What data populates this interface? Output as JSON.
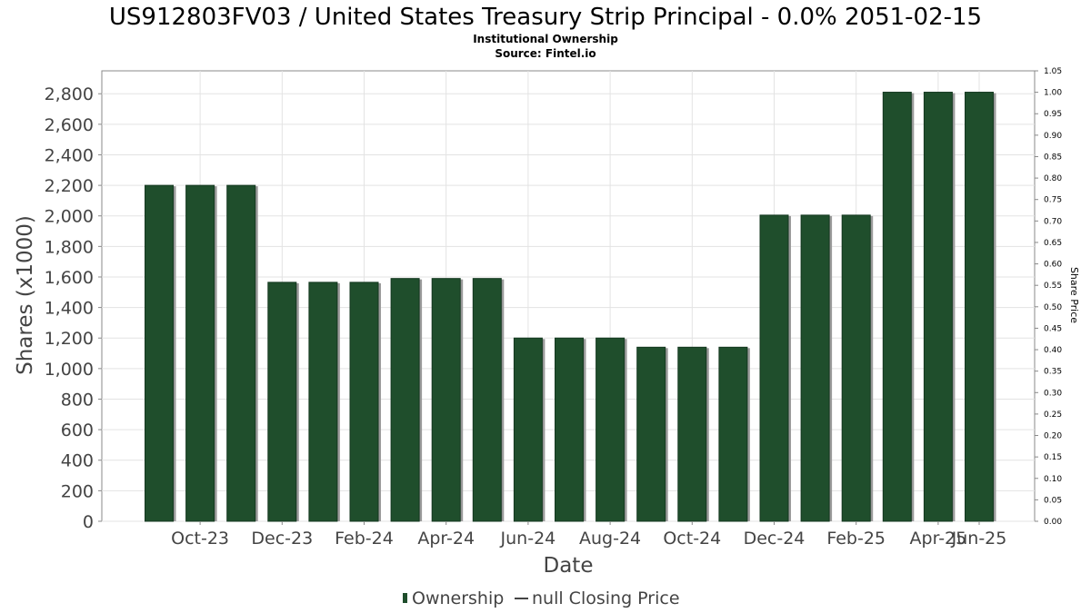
{
  "chart_data": {
    "type": "bar",
    "title": "US912803FV03 / United States Treasury Strip Principal - 0.0% 2051-02-15",
    "subtitle_lines": [
      "Institutional Ownership",
      "Source: Fintel.io"
    ],
    "xlabel": "Date",
    "ylabel": "Shares (x1000)",
    "y2label": "Share Price",
    "ylim": [
      0,
      2950
    ],
    "y2lim": [
      0,
      1.05
    ],
    "yticks": [
      0,
      200,
      400,
      600,
      800,
      1000,
      1200,
      1400,
      1600,
      1800,
      2000,
      2200,
      2400,
      2600,
      2800
    ],
    "ytick_labels": [
      "0",
      "200",
      "400",
      "600",
      "800",
      "1,000",
      "1,200",
      "1,400",
      "1,600",
      "1,800",
      "2,000",
      "2,200",
      "2,400",
      "2,600",
      "2,800"
    ],
    "y2tick_labels": [
      "0.00",
      "0.05",
      "0.10",
      "0.15",
      "0.20",
      "0.25",
      "0.30",
      "0.35",
      "0.40",
      "0.45",
      "0.50",
      "0.55",
      "0.60",
      "0.65",
      "0.70",
      "0.75",
      "0.80",
      "0.85",
      "0.90",
      "0.95",
      "1.00",
      "1.05"
    ],
    "x_tick_labels": [
      "Oct-23",
      "Dec-23",
      "Feb-24",
      "Apr-24",
      "Jun-24",
      "Aug-24",
      "Oct-24",
      "Dec-24",
      "Feb-25",
      "Apr-25",
      "Jun-25"
    ],
    "series": [
      {
        "name": "Ownership",
        "color": "#1f4e2c",
        "values": [
          2200,
          2200,
          2200,
          1565,
          1565,
          1565,
          1590,
          1590,
          1590,
          1200,
          1200,
          1200,
          1140,
          1140,
          1140,
          2005,
          2005,
          2005,
          2810,
          2810,
          2810
        ]
      }
    ],
    "legend": [
      {
        "label": "Ownership",
        "marker": "bar",
        "color": "#1f4e2c"
      },
      {
        "label": "null Closing Price",
        "marker": "line",
        "color": "#444444"
      }
    ],
    "legend_position": "bottom",
    "grid": true
  }
}
